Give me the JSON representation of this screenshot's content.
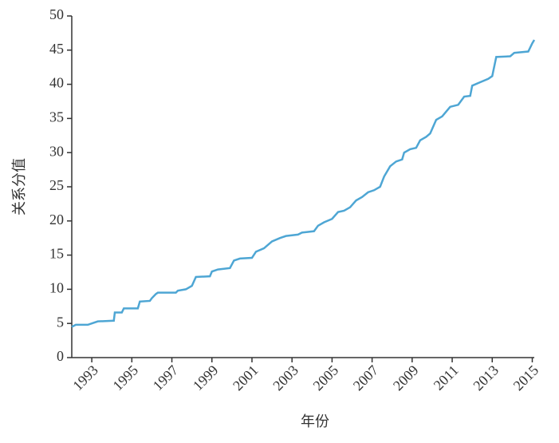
{
  "chart_data": {
    "type": "line",
    "xlabel": "年份",
    "ylabel": "关系分值",
    "x": [
      1992.0,
      1992.2,
      1992.8,
      1993.0,
      1993.3,
      1994.1,
      1994.15,
      1994.5,
      1994.6,
      1995.3,
      1995.4,
      1995.9,
      1996.0,
      1996.2,
      1996.3,
      1997.2,
      1997.3,
      1997.7,
      1998.0,
      1998.2,
      1998.9,
      1999.0,
      1999.3,
      1999.9,
      2000.1,
      2000.4,
      2001.0,
      2001.2,
      2001.6,
      2002.0,
      2002.4,
      2002.7,
      2003.3,
      2003.5,
      2004.1,
      2004.3,
      2004.6,
      2005.0,
      2005.3,
      2005.6,
      2005.9,
      2006.2,
      2006.5,
      2006.8,
      2007.1,
      2007.4,
      2007.6,
      2007.9,
      2008.2,
      2008.5,
      2008.6,
      2008.9,
      2009.2,
      2009.4,
      2009.7,
      2009.9,
      2010.2,
      2010.5,
      2010.7,
      2010.9,
      2011.3,
      2011.6,
      2011.9,
      2012.0,
      2012.4,
      2012.8,
      2013.0,
      2013.2,
      2013.9,
      2014.1,
      2014.8,
      2015.0,
      2015.1
    ],
    "series": [
      {
        "color": "#4ea6d4",
        "values": [
          4.5,
          4.8,
          4.8,
          5.0,
          5.3,
          5.4,
          6.6,
          6.6,
          7.2,
          7.2,
          8.2,
          8.3,
          8.7,
          9.3,
          9.5,
          9.5,
          9.8,
          10.0,
          10.5,
          11.8,
          11.9,
          12.6,
          12.9,
          13.1,
          14.2,
          14.5,
          14.6,
          15.5,
          16.0,
          17.0,
          17.5,
          17.8,
          18.0,
          18.3,
          18.5,
          19.3,
          19.8,
          20.3,
          21.3,
          21.5,
          22.0,
          23.0,
          23.5,
          24.2,
          24.5,
          25.0,
          26.5,
          28.0,
          28.7,
          29.0,
          30.0,
          30.5,
          30.7,
          31.8,
          32.3,
          32.8,
          34.8,
          35.3,
          36.0,
          36.7,
          37.0,
          38.2,
          38.3,
          39.8,
          40.3,
          40.8,
          41.2,
          44.0,
          44.1,
          44.6,
          44.8,
          46.0,
          46.5
        ]
      }
    ],
    "xlim": [
      1992,
      2015.1
    ],
    "xticks": [
      1993,
      1995,
      1997,
      1999,
      2001,
      2003,
      2005,
      2007,
      2009,
      2011,
      2013,
      2015
    ],
    "ylim": [
      0,
      50
    ],
    "yticks": [
      0,
      5,
      10,
      15,
      20,
      25,
      30,
      35,
      40,
      45,
      50
    ]
  }
}
